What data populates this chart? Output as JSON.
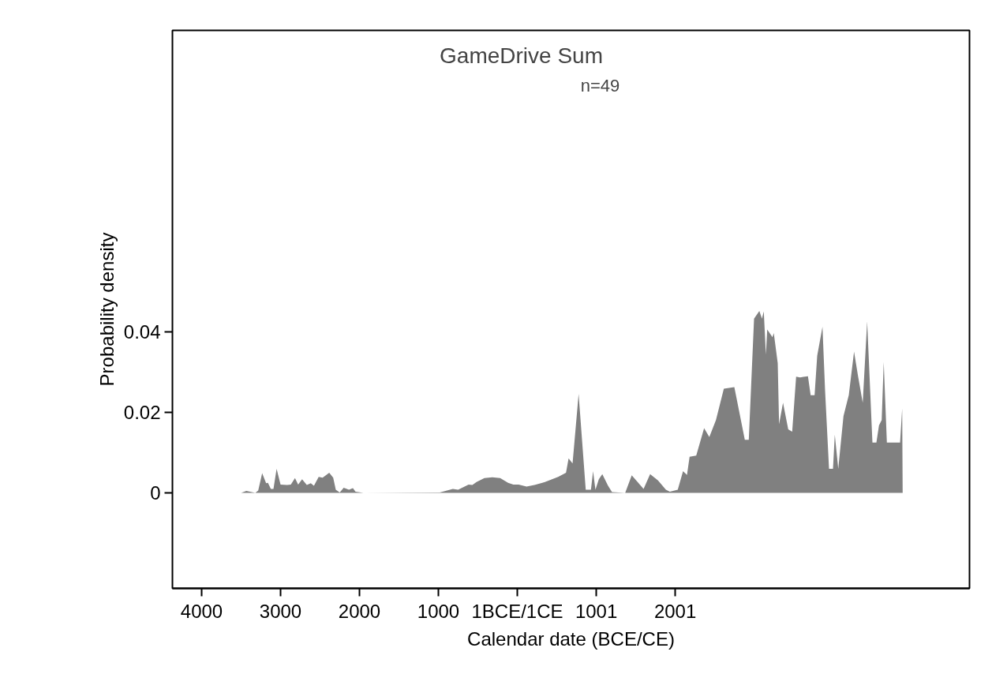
{
  "chart_data": {
    "type": "area",
    "title": "GameDrive Sum",
    "subtitle": "n=49",
    "xlabel": "Calendar date (BCE/CE)",
    "ylabel": "Probability density",
    "xlim": [
      -4370,
      5730
    ],
    "ylim": [
      -0.0237,
      0.1149
    ],
    "xticks": [
      {
        "value": -4000,
        "label": "4000"
      },
      {
        "value": -3000,
        "label": "3000"
      },
      {
        "value": -2000,
        "label": "2000"
      },
      {
        "value": -1000,
        "label": "1000"
      },
      {
        "value": 0,
        "label": "1BCE/1CE"
      },
      {
        "value": 1001,
        "label": "1001"
      },
      {
        "value": 2001,
        "label": "2001"
      }
    ],
    "yticks": [
      0,
      0.02,
      0.04
    ],
    "grid": false,
    "series": [
      {
        "color": "#808080",
        "x": [
          -3500,
          -3433,
          -3320,
          -3283,
          -3233,
          -3183,
          -3160,
          -3123,
          -3090,
          -3050,
          -3000,
          -2917,
          -2870,
          -2817,
          -2777,
          -2727,
          -2667,
          -2617,
          -2577,
          -2517,
          -2467,
          -2383,
          -2333,
          -2300,
          -2250,
          -2200,
          -2133,
          -2083,
          -2050,
          -1950,
          -983,
          -817,
          -750,
          -617,
          -570,
          -517,
          -417,
          -317,
          -217,
          -117,
          -50,
          17,
          117,
          217,
          317,
          350,
          517,
          617,
          650,
          700,
          777,
          867,
          933,
          960,
          990,
          1033,
          1077,
          1150,
          1200,
          1367,
          1450,
          1533,
          1600,
          1683,
          1783,
          1883,
          1933,
          2033,
          2100,
          2150,
          2183,
          2267,
          2367,
          2433,
          2517,
          2617,
          2750,
          2883,
          2933,
          3000,
          3067,
          3100,
          3123,
          3150,
          3167,
          3233,
          3250,
          3300,
          3317,
          3367,
          3433,
          3483,
          3533,
          3583,
          3683,
          3717,
          3767,
          3800,
          3867,
          3900,
          3950,
          4000,
          4023,
          4067,
          4133,
          4200,
          4267,
          4317,
          4377,
          4433,
          4500,
          4550,
          4583,
          4617,
          4643,
          4683,
          4850,
          4877,
          4883
        ],
        "values": [
          0,
          0.0005,
          0,
          0.0006,
          0.0049,
          0.0024,
          0.0025,
          0.001,
          0.001,
          0.006,
          0.0021,
          0.002,
          0.0021,
          0.0037,
          0.0021,
          0.0034,
          0.002,
          0.0024,
          0.0018,
          0.004,
          0.0038,
          0.005,
          0.0038,
          0.0008,
          0.0001,
          0.0013,
          0.0008,
          0.0012,
          0.0003,
          0,
          0.0001,
          0.001,
          0.0008,
          0.0021,
          0.002,
          0.0027,
          0.0037,
          0.0039,
          0.0037,
          0.0025,
          0.0021,
          0.0021,
          0.0016,
          0.002,
          0.0025,
          0.0027,
          0.004,
          0.005,
          0.0086,
          0.0073,
          0.0246,
          0.0008,
          0.0008,
          0.0054,
          0.0008,
          0.0034,
          0.0047,
          0.0018,
          0.0002,
          0,
          0.0044,
          0.0025,
          0.001,
          0.0047,
          0.0031,
          0.0008,
          0.0003,
          0.0008,
          0.0054,
          0.0045,
          0.009,
          0.0093,
          0.0161,
          0.0139,
          0.0181,
          0.0259,
          0.0263,
          0.0132,
          0.0132,
          0.0433,
          0.0452,
          0.0433,
          0.0451,
          0.0344,
          0.0406,
          0.0387,
          0.0397,
          0.0322,
          0.0171,
          0.0224,
          0.0158,
          0.0152,
          0.0289,
          0.0287,
          0.029,
          0.0243,
          0.0243,
          0.0341,
          0.0413,
          0.0254,
          0.006,
          0.006,
          0.0145,
          0.006,
          0.0191,
          0.0243,
          0.0351,
          0.0291,
          0.0224,
          0.0426,
          0.0125,
          0.0125,
          0.0168,
          0.0181,
          0.0325,
          0.0125,
          0.0125,
          0.021,
          0
        ]
      }
    ]
  }
}
